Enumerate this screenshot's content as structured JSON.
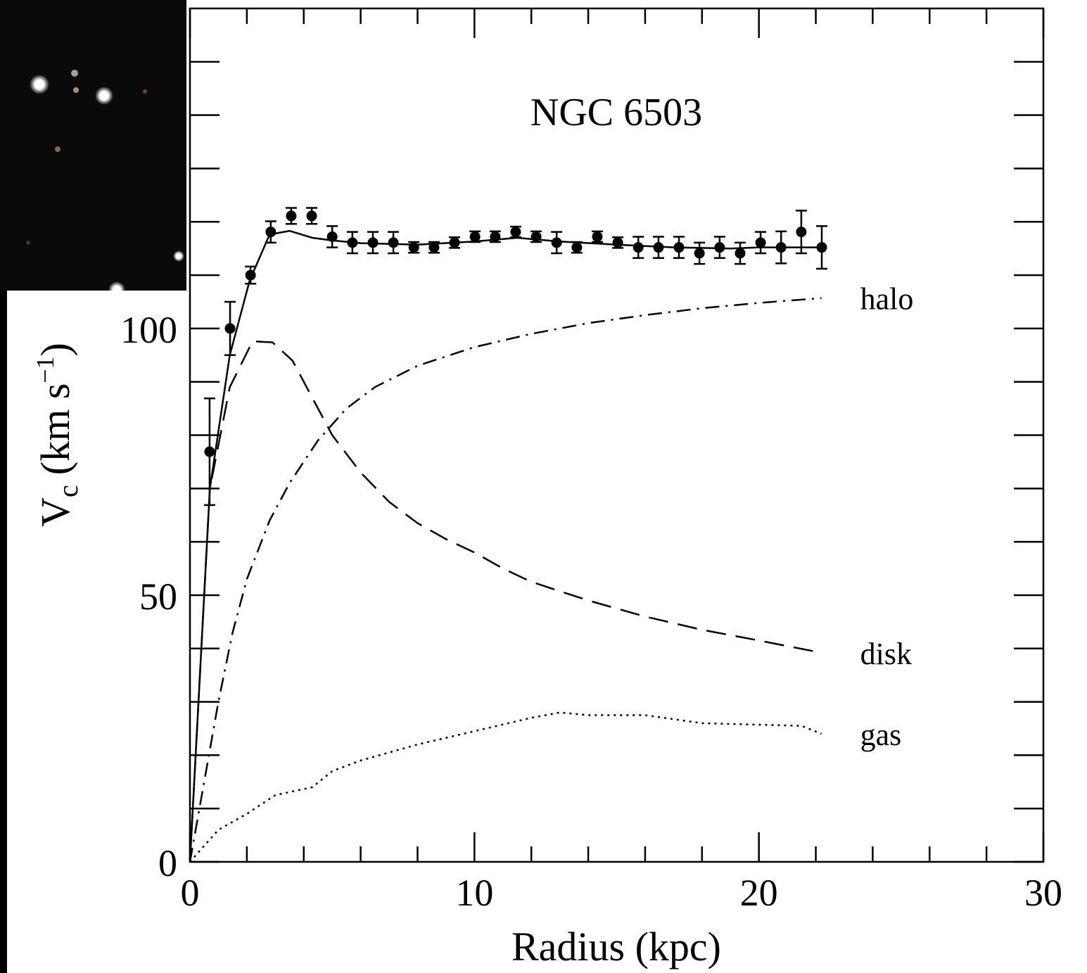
{
  "chart_data": {
    "type": "line",
    "title": "NGC 6503",
    "xlabel": "Radius (kpc)",
    "ylabel": [
      "V",
      "c",
      "(km s",
      "−1",
      ")"
    ],
    "xlim": [
      0,
      30
    ],
    "ylim": [
      0,
      160
    ],
    "xticks": [
      0,
      10,
      20,
      30
    ],
    "yticks": [
      0,
      50,
      100
    ],
    "xticks_minor": [
      2,
      4,
      6,
      8,
      12,
      14,
      16,
      18,
      22,
      24,
      26,
      28
    ],
    "yticks_minor": [
      10,
      20,
      30,
      40,
      60,
      70,
      80,
      90,
      110,
      120,
      130,
      140,
      150
    ],
    "points": {
      "x": [
        0.69,
        1.41,
        2.13,
        2.84,
        3.56,
        4.28,
        5.0,
        5.71,
        6.43,
        7.15,
        7.87,
        8.58,
        9.3,
        10.02,
        10.73,
        11.45,
        12.17,
        12.89,
        13.6,
        14.32,
        15.04,
        15.76,
        16.47,
        17.19,
        17.91,
        18.62,
        19.34,
        20.06,
        20.78,
        21.49,
        22.21
      ],
      "values": [
        76.9,
        100,
        110,
        118.1,
        121.1,
        121.1,
        117.2,
        116.1,
        116.1,
        116.1,
        115.2,
        115.2,
        116.1,
        117.2,
        117.2,
        118.1,
        117.2,
        116.1,
        115.2,
        117.2,
        116.1,
        115.2,
        115.2,
        115.2,
        114.1,
        115.2,
        114.1,
        116.1,
        115.2,
        118.1,
        115.2
      ],
      "errors": [
        10,
        5,
        1.6,
        2,
        1.5,
        1.5,
        2,
        2,
        2,
        2,
        1,
        1,
        1,
        1,
        1,
        1,
        1,
        2,
        1,
        1,
        1,
        2,
        2,
        2,
        2,
        2,
        2,
        2,
        3,
        4,
        4
      ],
      "color": "#000000"
    },
    "series": [
      {
        "style": "solid",
        "color": "#000000",
        "x": [
          0,
          0.7,
          1.4,
          2.1,
          2.8,
          3.5,
          4.3,
          5,
          6,
          8,
          10,
          11.5,
          13,
          15,
          17,
          19,
          20,
          22.2
        ],
        "values": [
          0,
          70,
          95,
          109,
          117.6,
          118.3,
          117,
          116.5,
          116,
          115.7,
          116.3,
          117,
          116.3,
          115.7,
          115.2,
          115,
          115.2,
          115.2
        ]
      },
      {
        "name": "halo",
        "style": "dashdot",
        "color": "#000000",
        "x": [
          0,
          0.5,
          1,
          1.5,
          2,
          2.8,
          3.5,
          4.5,
          5.5,
          6.5,
          8,
          10,
          12,
          14,
          16,
          18,
          20,
          22.2
        ],
        "values": [
          0,
          15,
          30,
          43,
          53,
          64,
          71,
          79,
          85,
          89,
          93,
          96.5,
          99,
          101,
          102.5,
          103.8,
          104.8,
          105.7
        ]
      },
      {
        "name": "disk",
        "style": "dashed",
        "color": "#000000",
        "x": [
          0,
          0.7,
          1.4,
          2.2,
          2.9,
          3.6,
          4.3,
          5,
          6,
          7,
          8,
          9,
          10,
          11,
          12,
          14,
          16,
          18,
          20,
          22.2
        ],
        "values": [
          0,
          70,
          89,
          97.6,
          97.4,
          94,
          87,
          80,
          73,
          67.5,
          63.5,
          60.5,
          58,
          55,
          52.5,
          49,
          46,
          43.5,
          41.5,
          39.2
        ]
      },
      {
        "name": "gas",
        "style": "dotted",
        "color": "#000000",
        "x": [
          0,
          1,
          2,
          3,
          4.3,
          5,
          6,
          8,
          10,
          12,
          13,
          14,
          16,
          18,
          21.5,
          22.2
        ],
        "values": [
          0,
          6,
          9,
          12.5,
          14,
          17,
          19,
          22,
          24.5,
          27,
          28,
          27.5,
          27.5,
          26,
          25.5,
          24
        ]
      }
    ]
  }
}
